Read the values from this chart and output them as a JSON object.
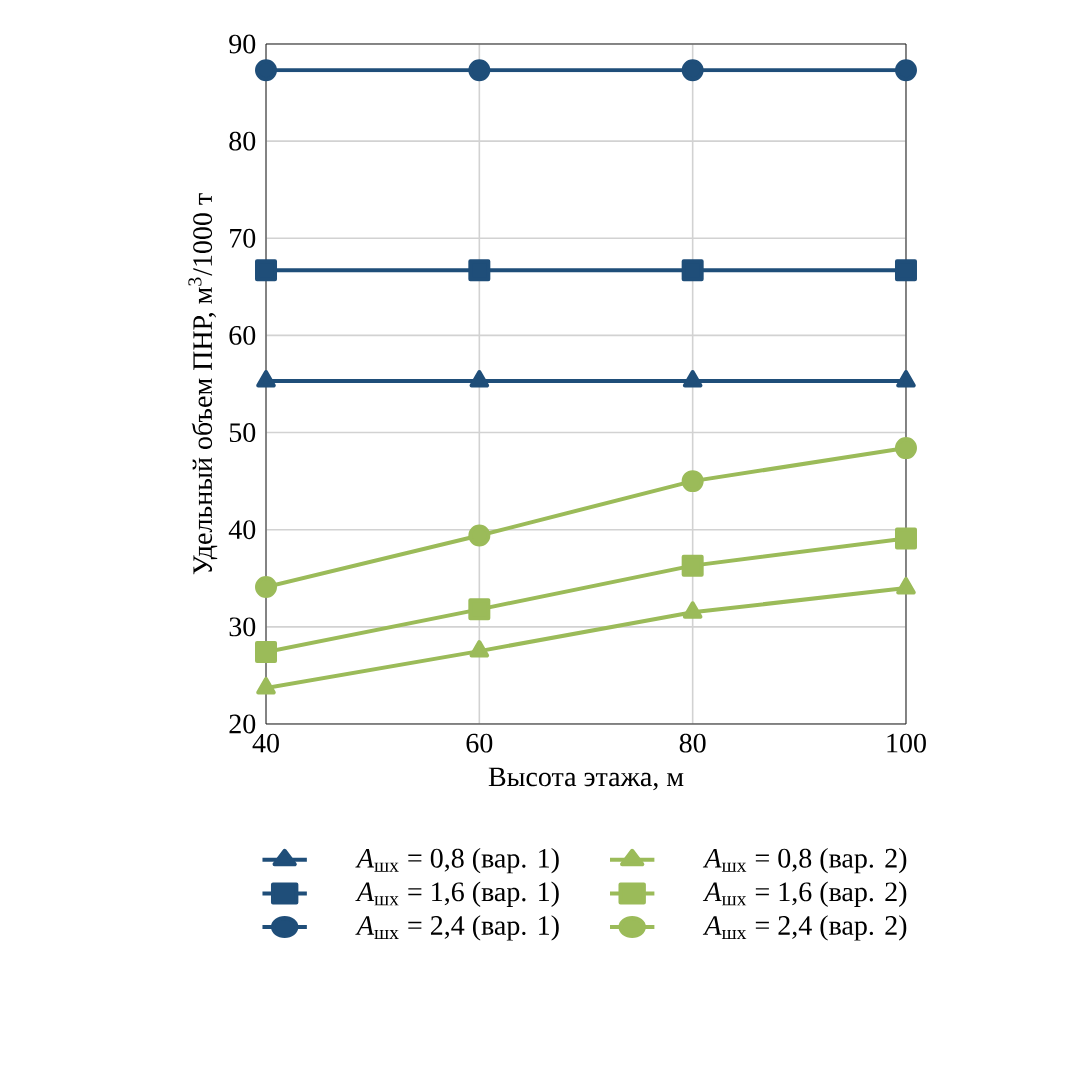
{
  "chart_data": {
    "type": "line",
    "xlabel": "Высота этажа, м",
    "ylabel": "Удельный объем ПНР, м$^{3}$/1000 т",
    "x": [
      40,
      60,
      80,
      100
    ],
    "xlim": [
      40,
      100
    ],
    "xticks": [
      40,
      60,
      80,
      100
    ],
    "ylim": [
      20,
      90
    ],
    "yticks": [
      20,
      30,
      40,
      50,
      60,
      70,
      80,
      90
    ],
    "grid": true,
    "legend": "bottom",
    "series": [
      {
        "name": "*A*$_{шх}$ = 0,8 (вар. 1)",
        "color": "#1f4e79",
        "marker": "triangle",
        "values": [
          55.3,
          55.3,
          55.3,
          55.3
        ]
      },
      {
        "name": "*A*$_{шх}$ = 0,8 (вар. 2)",
        "color": "#9bbb59",
        "marker": "triangle",
        "values": [
          23.7,
          27.5,
          31.5,
          34.0
        ]
      },
      {
        "name": "*A*$_{шх}$ = 1,6 (вар. 1)",
        "color": "#1f4e79",
        "marker": "square",
        "values": [
          66.7,
          66.7,
          66.7,
          66.7
        ]
      },
      {
        "name": "*A*$_{шх}$ = 1,6 (вар. 2)",
        "color": "#9bbb59",
        "marker": "square",
        "values": [
          27.4,
          31.8,
          36.3,
          39.1
        ]
      },
      {
        "name": "*A*$_{шх}$ = 2,4 (вар. 1)",
        "color": "#1f4e79",
        "marker": "circle",
        "values": [
          87.3,
          87.3,
          87.3,
          87.3
        ]
      },
      {
        "name": "*A*$_{шх}$ = 2,4 (вар. 2)",
        "color": "#9bbb59",
        "marker": "circle",
        "values": [
          34.1,
          39.4,
          45.0,
          48.4
        ]
      }
    ]
  }
}
